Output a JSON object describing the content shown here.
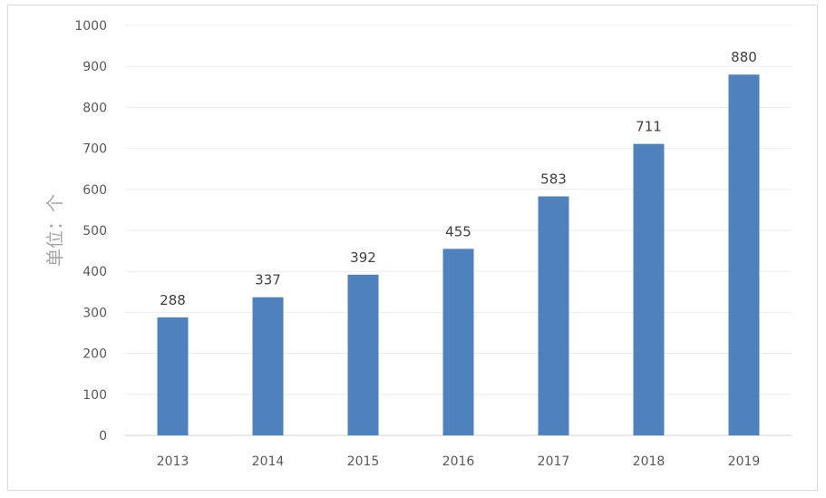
{
  "chart_data": {
    "type": "bar",
    "categories": [
      "2013",
      "2014",
      "2015",
      "2016",
      "2017",
      "2018",
      "2019"
    ],
    "values": [
      288,
      337,
      392,
      455,
      583,
      711,
      880
    ],
    "ylabel": "单位：个",
    "xlabel": "",
    "ylim": [
      0,
      1000
    ],
    "yticks": [
      0,
      100,
      200,
      300,
      400,
      500,
      600,
      700,
      800,
      900,
      1000
    ],
    "bar_color": "#4f81bd",
    "grid": true,
    "legend": "none"
  }
}
